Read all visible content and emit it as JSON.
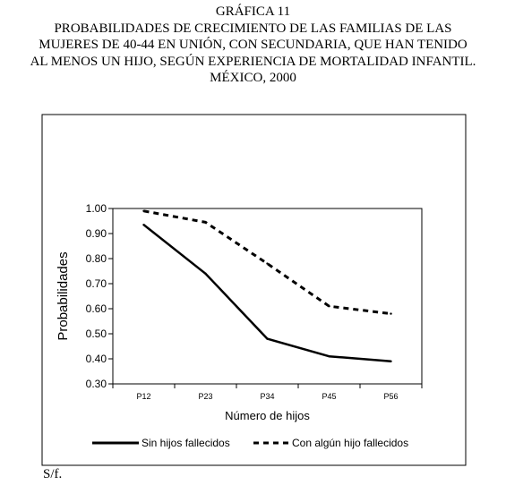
{
  "header": {
    "label": "GRÁFICA 11",
    "title_lines": [
      "PROBABILIDADES DE CRECIMIENTO DE LAS FAMILIAS DE LAS",
      "MUJERES DE 40-44 EN UNIÓN, CON SECUNDARIA, QUE HAN TENIDO",
      "AL MENOS UN HIJO, SEGÚN EXPERIENCIA DE MORTALIDAD INFANTIL.",
      "MÉXICO, 2000"
    ]
  },
  "source_note": "S/f.",
  "chart_data": {
    "type": "line",
    "categories": [
      "P12",
      "P23",
      "P34",
      "P45",
      "P56"
    ],
    "series": [
      {
        "name": "Sin hijos fallecidos",
        "values": [
          0.935,
          0.74,
          0.48,
          0.41,
          0.39
        ],
        "style": "solid",
        "color": "#000000"
      },
      {
        "name": "Con algún hijo fallecidos",
        "values": [
          0.99,
          0.945,
          0.78,
          0.61,
          0.58
        ],
        "style": "dashed",
        "color": "#000000"
      }
    ],
    "xlabel": "Número de hijos",
    "ylabel": "Probabilidades",
    "ylim": [
      0.3,
      1.0
    ],
    "yticks": [
      "0.30",
      "0.40",
      "0.50",
      "0.60",
      "0.70",
      "0.80",
      "0.90",
      "1.00"
    ],
    "grid": false,
    "legend_position": "bottom"
  }
}
